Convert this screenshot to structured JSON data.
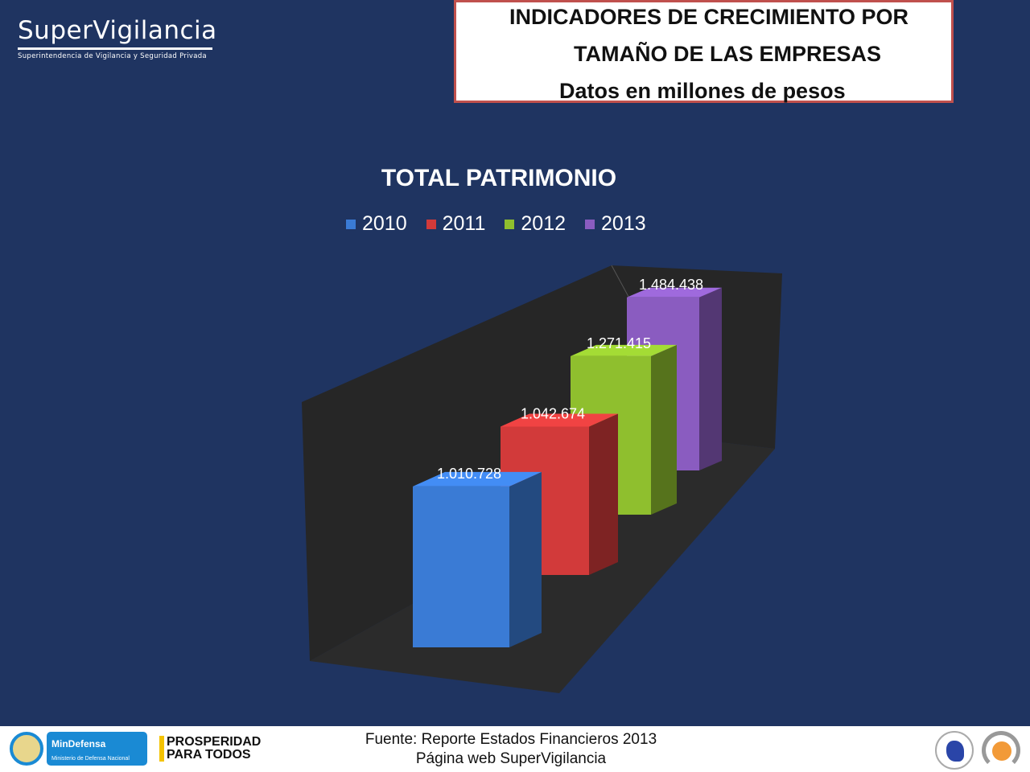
{
  "header": {
    "logo_name": "SuperVigilancia",
    "logo_subtitle": "Superintendencia de Vigilancia y Seguridad Privada"
  },
  "title_box": {
    "line1": "INDICADORES DE CRECIMIENTO POR",
    "line2": "TAMAÑO DE LAS EMPRESAS",
    "line3": "Datos en millones de pesos",
    "border_color": "#c0504d"
  },
  "chart_data": {
    "type": "bar",
    "style": "3d-column",
    "title": "TOTAL PATRIMONIO",
    "legend_position": "top",
    "categories": [
      "2010",
      "2011",
      "2012",
      "2013"
    ],
    "series": [
      {
        "name": "2010",
        "value": 1010728,
        "label": "1.010.728",
        "color": "#3a7bd5"
      },
      {
        "name": "2011",
        "value": 1042674,
        "label": "1.042.674",
        "color": "#d23a3a"
      },
      {
        "name": "2012",
        "value": 1271415,
        "label": "1.271.415",
        "color": "#8fbf2e"
      },
      {
        "name": "2013",
        "value": 1484438,
        "label": "1.484.438",
        "color": "#8a5cc0"
      }
    ],
    "grid": false,
    "axes_visible": false
  },
  "footer": {
    "source_line1": "Fuente: Reporte Estados Financieros 2013",
    "source_line2": "Página web SuperVigilancia",
    "mindefensa": "MinDefensa",
    "mindefensa_sub": "Ministerio de Defensa Nacional",
    "prosperidad1": "PROSPERIDAD",
    "prosperidad2": "PARA TODOS"
  }
}
